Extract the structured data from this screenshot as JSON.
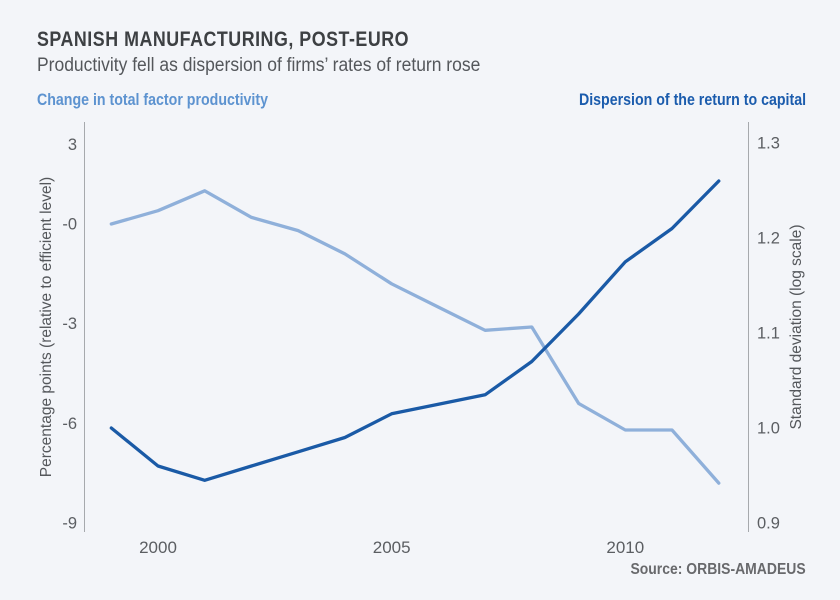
{
  "header": {
    "title": "SPANISH MANUFACTURING, POST-EURO",
    "subtitle": "Productivity fell as dispersion of firms’ rates of return rose"
  },
  "legend": {
    "left_label": "Change in total factor productivity",
    "right_label": "Dispersion of the return to capital"
  },
  "source": "Source: ORBIS-AMADEUS",
  "colors": {
    "background": "#f3f5f9",
    "tfp_line": "#8fb0da",
    "tfp_legend_text": "#5d93d0",
    "dispersion_line": "#1a5aa6",
    "dispersion_legend_text": "#1b5cad",
    "axis_line": "#a6a9ad",
    "title_text": "#3d4043",
    "subtitle_text": "#54575b",
    "tick_text": "#5b5e62",
    "source_text": "#68696c"
  },
  "chart_data": {
    "type": "line",
    "x": [
      1999,
      2000,
      2001,
      2002,
      2003,
      2004,
      2005,
      2006,
      2007,
      2008,
      2009,
      2010,
      2011,
      2012
    ],
    "x_tick_years": [
      2000,
      2005,
      2010
    ],
    "x_tick_labels": [
      "2000",
      "2005",
      "2010"
    ],
    "series": [
      {
        "name": "Change in total factor productivity",
        "axis": "left",
        "color": "#8fb0da",
        "values": [
          0.0,
          0.4,
          1.0,
          0.2,
          -0.2,
          -0.9,
          -1.8,
          -2.5,
          -3.2,
          -3.1,
          -5.4,
          -6.2,
          -6.2,
          -7.8
        ]
      },
      {
        "name": "Dispersion of the return to capital",
        "axis": "right",
        "color": "#1a5aa6",
        "values": [
          1.0,
          0.96,
          0.945,
          0.96,
          0.975,
          0.99,
          1.015,
          1.025,
          1.035,
          1.07,
          1.12,
          1.175,
          1.21,
          1.26
        ]
      }
    ],
    "left_axis": {
      "label": "Percentage points (relative to efficient level)",
      "tick_labels": [
        "3",
        "-0",
        "-3",
        "-6",
        "-9"
      ],
      "tick_values": [
        3,
        0,
        -3,
        -6,
        -9
      ],
      "range_top": 3,
      "range_bottom": -9.3
    },
    "right_axis": {
      "label": "Standard deviation (log scale)",
      "tick_labels": [
        "1.3",
        "1.2",
        "1.1",
        "1.0",
        "0.9"
      ],
      "tick_values": [
        1.3,
        1.2,
        1.1,
        1.0,
        0.9
      ],
      "range_top": 1.3,
      "range_bottom": 0.895,
      "scale": "log"
    },
    "grid": "off",
    "legend_position": "top"
  }
}
